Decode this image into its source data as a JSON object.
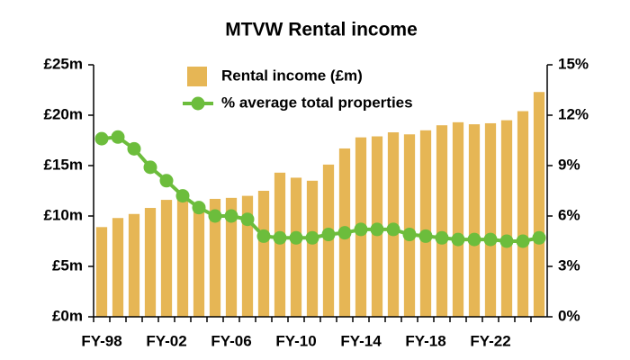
{
  "chart_data": {
    "type": "bar_line",
    "title": "MTVW Rental income",
    "categories": [
      "FY-98",
      null,
      null,
      null,
      "FY-02",
      null,
      null,
      null,
      "FY-06",
      null,
      null,
      null,
      "FY-10",
      null,
      null,
      null,
      "FY-14",
      null,
      null,
      null,
      "FY-18",
      null,
      null,
      null,
      "FY-22",
      null,
      null,
      null
    ],
    "series": [
      {
        "name": "Rental income (£m)",
        "type": "bar",
        "color": "#e6b655",
        "axis": "y",
        "values": [
          8.9,
          9.8,
          10.2,
          10.8,
          11.6,
          12.0,
          11.0,
          11.7,
          11.8,
          12.0,
          12.5,
          14.3,
          13.8,
          13.5,
          15.1,
          16.7,
          17.8,
          17.9,
          18.3,
          18.1,
          18.5,
          19.0,
          19.3,
          19.1,
          19.2,
          19.5,
          20.4,
          22.3
        ]
      },
      {
        "name": "% average total properties",
        "type": "line",
        "color": "#6cbd3c",
        "axis": "y2",
        "values": [
          10.6,
          10.7,
          10.0,
          8.9,
          8.1,
          7.2,
          6.5,
          6.0,
          6.0,
          5.8,
          4.8,
          4.7,
          4.7,
          4.7,
          4.9,
          5.0,
          5.2,
          5.2,
          5.2,
          4.9,
          4.8,
          4.7,
          4.6,
          4.6,
          4.6,
          4.5,
          4.5,
          4.7
        ]
      }
    ],
    "ylim": [
      0,
      25
    ],
    "yticks": [
      {
        "value": 0,
        "label": "£0m"
      },
      {
        "value": 5,
        "label": "£5m"
      },
      {
        "value": 10,
        "label": "£10m"
      },
      {
        "value": 15,
        "label": "£15m"
      },
      {
        "value": 20,
        "label": "£20m"
      },
      {
        "value": 25,
        "label": "£25m"
      }
    ],
    "y2lim": [
      0,
      15
    ],
    "y2ticks": [
      {
        "value": 0,
        "label": "0%"
      },
      {
        "value": 3,
        "label": "3%"
      },
      {
        "value": 6,
        "label": "6%"
      },
      {
        "value": 9,
        "label": "9%"
      },
      {
        "value": 12,
        "label": "12%"
      },
      {
        "value": 15,
        "label": "15%"
      }
    ],
    "grid": false,
    "legend": "top"
  }
}
